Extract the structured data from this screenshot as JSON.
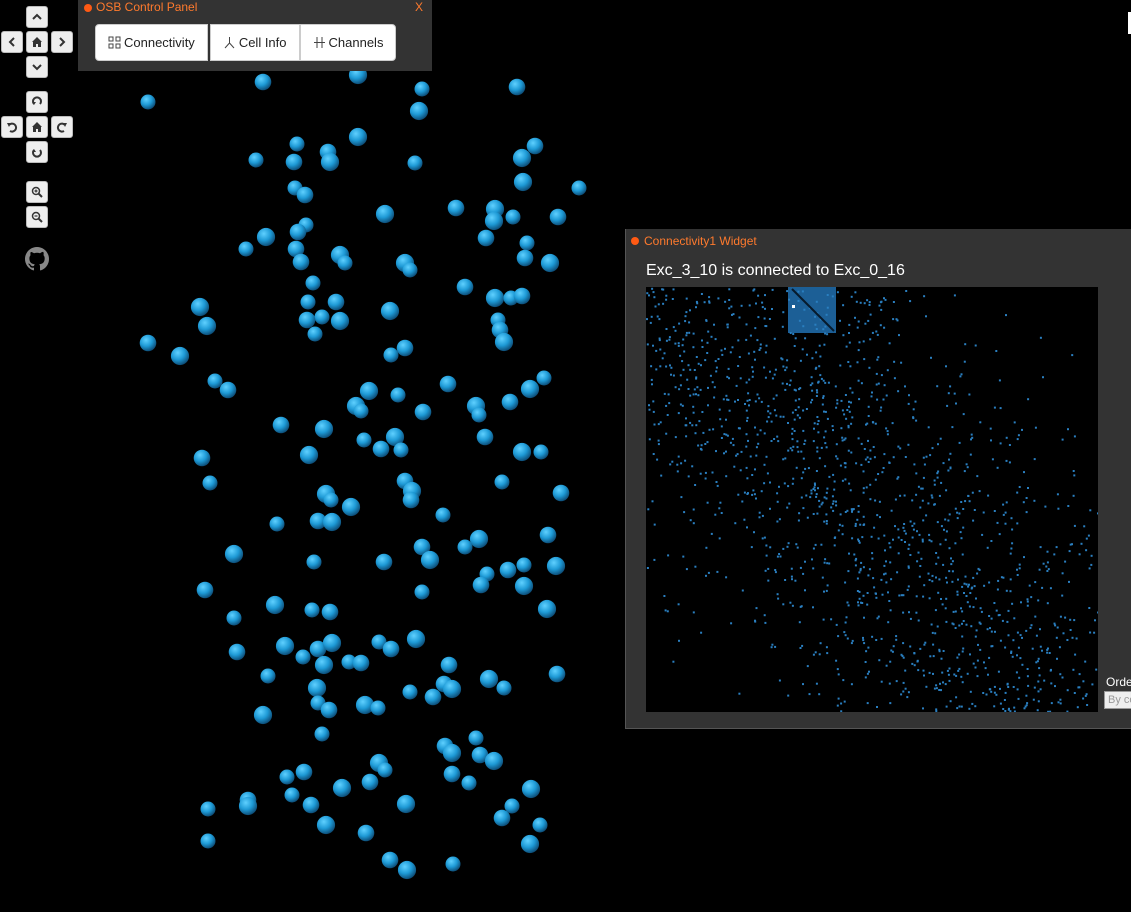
{
  "osb_panel": {
    "title": "OSB Control Panel",
    "close": "X",
    "buttons": [
      {
        "label": "Connectivity",
        "icon": "connectivity-icon"
      },
      {
        "label": "Cell Info",
        "icon": "cell-info-icon"
      },
      {
        "label": "Channels",
        "icon": "channels-icon"
      }
    ]
  },
  "camera_controls": [
    "pan-up-icon",
    "pan-left-icon",
    "home-icon",
    "pan-right-icon",
    "pan-down-icon",
    "rotate-up-icon",
    "rotate-left-icon",
    "rotate-home-icon",
    "rotate-right-icon",
    "rotate-down-icon",
    "zoom-in-icon",
    "zoom-out-icon",
    "github-icon"
  ],
  "widget": {
    "title": "Connectivity1 Widget",
    "heading": "Exc_3_10 is connected to Exc_0_16",
    "order_label": "Order",
    "order_value": "By cell"
  },
  "colors": {
    "accent": "#ff7a2d",
    "cell": "#1e9ad6",
    "matrix_dot": "#2a7fc0"
  }
}
